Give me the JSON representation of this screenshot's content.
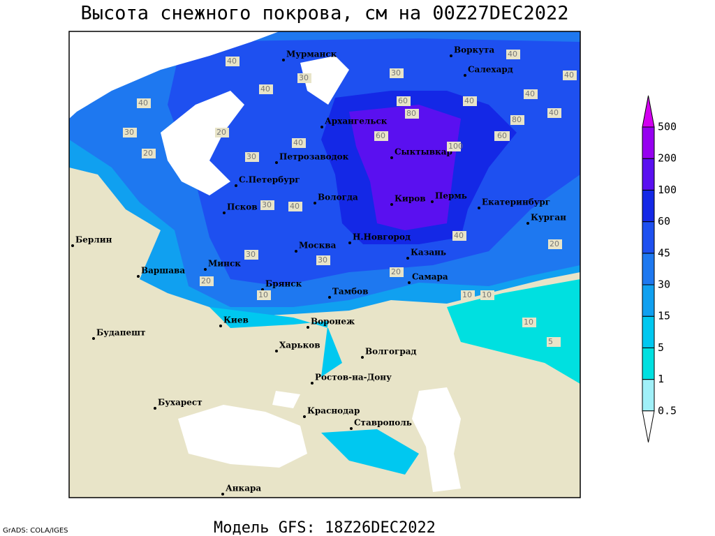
{
  "title": "Высота снежного покрова, см на 00Z27DEC2022",
  "footer": "Модель GFS: 18Z26DEC2022",
  "credit": "GrADS: COLA/IGES",
  "colorbar": {
    "levels": [
      0.5,
      1,
      5,
      15,
      30,
      45,
      60,
      100,
      200,
      500
    ],
    "colors": [
      "#ffffff",
      "#a0f0f8",
      "#00e0e0",
      "#00c8f0",
      "#10a0f0",
      "#1e78f0",
      "#1e50f0",
      "#1428e6",
      "#5a10f0",
      "#9600f0",
      "#d200f0"
    ]
  },
  "cities": [
    "Мурманск",
    "Воркута",
    "Салехард",
    "Архангельск",
    "Петрозаводок",
    "Сыктывкар",
    "С.Петербург",
    "Псков",
    "Вологда",
    "Киров",
    "Пермь",
    "Екатеринбург",
    "Курган",
    "Берлин",
    "Н.Новгород",
    "Минск",
    "Москва",
    "Казань",
    "Варшава",
    "Брянск",
    "Тамбов",
    "Самара",
    "Киев",
    "Воронеж",
    "Будапешт",
    "Харьков",
    "Волгоград",
    "Ростов-на-Дону",
    "Бухарест",
    "Краснодар",
    "Ставрополь",
    "Анкара"
  ],
  "contour_labels": [
    40,
    30,
    40,
    20,
    30,
    40,
    20,
    30,
    40,
    60,
    80,
    60,
    80,
    40,
    40,
    100,
    80,
    40,
    40,
    30,
    40,
    30,
    20,
    20,
    10,
    10,
    20,
    10,
    5,
    10,
    20,
    40,
    30,
    30,
    60,
    40
  ]
}
